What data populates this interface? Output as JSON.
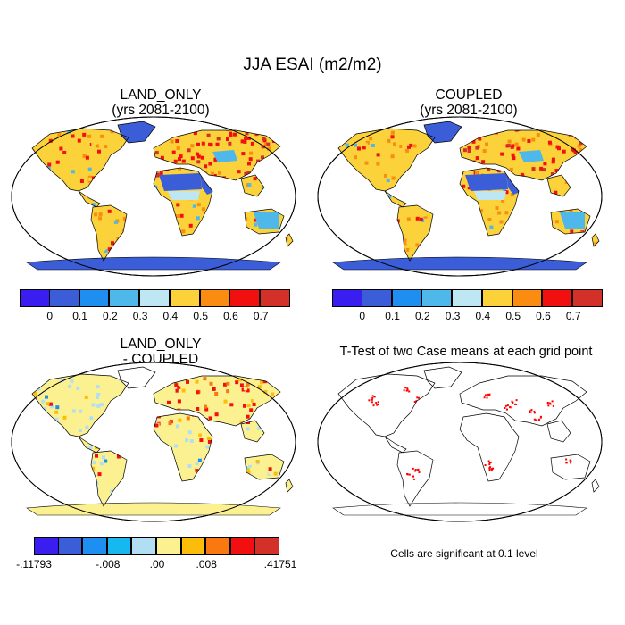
{
  "figure": {
    "title": "JJA ESAI (m2/m2)",
    "note": "Cells are significant at 0.1 level"
  },
  "panels": [
    {
      "id": "land_only",
      "title": "LAND_ONLY",
      "subtitle": "(yrs 2081-2100)",
      "antarctica_color": "#3b5ed8",
      "colorbar": {
        "colors": [
          "#3a1ef0",
          "#3b5ed8",
          "#1e8ff0",
          "#4fb8ea",
          "#bfe6f3",
          "#fbd23a",
          "#f98c11",
          "#f20f0f",
          "#d3302a"
        ],
        "labels": [
          "0",
          "0.1",
          "0.2",
          "0.3",
          "0.4",
          "0.5",
          "0.6",
          "0.7"
        ]
      }
    },
    {
      "id": "coupled",
      "title": "COUPLED",
      "subtitle": "(yrs 2081-2100)",
      "antarctica_color": "#3b5ed8",
      "colorbar": {
        "colors": [
          "#3a1ef0",
          "#3b5ed8",
          "#1e8ff0",
          "#4fb8ea",
          "#bfe6f3",
          "#fbd23a",
          "#f98c11",
          "#f20f0f",
          "#d3302a"
        ],
        "labels": [
          "0",
          "0.1",
          "0.2",
          "0.3",
          "0.4",
          "0.5",
          "0.6",
          "0.7"
        ]
      }
    },
    {
      "id": "difference",
      "title": "LAND_ONLY",
      "subtitle": "- COUPLED",
      "antarctica_color": "#fcf190",
      "colorbar": {
        "colors": [
          "#3a1ef0",
          "#3b5ed8",
          "#1e8ff0",
          "#17b8f0",
          "#b2def3",
          "#fcf190",
          "#fbbd09",
          "#f9780f",
          "#f20f0f",
          "#d3302a"
        ],
        "labels": [
          "-.11793",
          "-.008",
          ".00",
          ".008",
          ".41751"
        ]
      }
    },
    {
      "id": "ttest",
      "title": "T-Test of two Case means at each grid point",
      "significant_color": "#ff0000"
    }
  ]
}
